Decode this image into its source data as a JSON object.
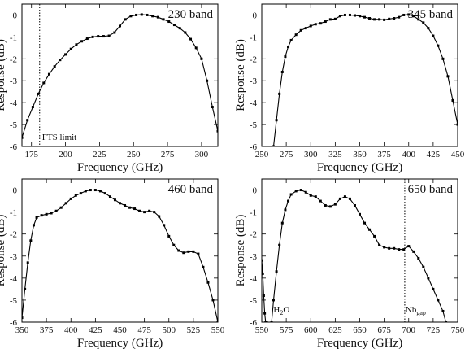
{
  "chart_data": [
    {
      "type": "line",
      "band_label": "230 band",
      "xlabel": "Frequency (GHz)",
      "ylabel": "Response (dB)",
      "xlim": [
        168,
        312
      ],
      "ylim": [
        -6,
        0.5
      ],
      "xticks": [
        175,
        200,
        225,
        250,
        275,
        300
      ],
      "yticks": [
        0,
        -1,
        -2,
        -3,
        -4,
        -5,
        -6
      ],
      "annotations": [
        {
          "text": "FTS limit",
          "x": 181
        }
      ],
      "series": [
        {
          "x": [
            168,
            172,
            176,
            180,
            184,
            188,
            192,
            196,
            200,
            204,
            208,
            212,
            216,
            220,
            224,
            228,
            232,
            236,
            240,
            244,
            248,
            252,
            256,
            260,
            264,
            268,
            272,
            276,
            280,
            284,
            288,
            292,
            296,
            300,
            304,
            308,
            312
          ],
          "y": [
            -5.6,
            -4.8,
            -4.2,
            -3.6,
            -3.1,
            -2.7,
            -2.35,
            -2.05,
            -1.8,
            -1.55,
            -1.35,
            -1.2,
            -1.08,
            -1.0,
            -0.97,
            -0.97,
            -0.95,
            -0.8,
            -0.5,
            -0.2,
            -0.05,
            0.0,
            0.02,
            0.0,
            -0.05,
            -0.1,
            -0.2,
            -0.3,
            -0.45,
            -0.6,
            -0.8,
            -1.1,
            -1.5,
            -2.0,
            -3.0,
            -4.2,
            -5.3
          ]
        }
      ]
    },
    {
      "type": "line",
      "band_label": "345 band",
      "xlabel": "Frequency (GHz)",
      "ylabel": "Response (dB)",
      "xlim": [
        250,
        450
      ],
      "ylim": [
        -6,
        0.5
      ],
      "xticks": [
        250,
        275,
        300,
        325,
        350,
        375,
        400,
        425,
        450
      ],
      "yticks": [
        0,
        -1,
        -2,
        -3,
        -4,
        -5,
        -6
      ],
      "annotations": [],
      "series": [
        {
          "x": [
            262,
            265,
            268,
            271,
            274,
            277,
            280,
            285,
            290,
            295,
            300,
            305,
            310,
            315,
            320,
            325,
            330,
            335,
            340,
            345,
            350,
            355,
            360,
            365,
            370,
            375,
            380,
            385,
            390,
            395,
            400,
            405,
            410,
            415,
            420,
            425,
            430,
            435,
            440,
            445,
            450
          ],
          "y": [
            -6.0,
            -4.8,
            -3.6,
            -2.6,
            -1.9,
            -1.45,
            -1.15,
            -0.9,
            -0.7,
            -0.6,
            -0.5,
            -0.42,
            -0.38,
            -0.3,
            -0.2,
            -0.18,
            -0.05,
            0.0,
            0.0,
            -0.02,
            -0.05,
            -0.1,
            -0.15,
            -0.2,
            -0.2,
            -0.22,
            -0.18,
            -0.15,
            -0.1,
            0.0,
            0.02,
            -0.05,
            -0.2,
            -0.35,
            -0.6,
            -0.95,
            -1.4,
            -2.0,
            -2.8,
            -3.9,
            -5.0
          ]
        }
      ]
    },
    {
      "type": "line",
      "band_label": "460 band",
      "xlabel": "Frequency (GHz)",
      "ylabel": "Response (dB)",
      "xlim": [
        350,
        550
      ],
      "ylim": [
        -6,
        0.5
      ],
      "xticks": [
        350,
        375,
        400,
        425,
        450,
        475,
        500,
        525,
        550
      ],
      "yticks": [
        0,
        -1,
        -2,
        -3,
        -4,
        -5,
        -6
      ],
      "annotations": [],
      "series": [
        {
          "x": [
            350,
            353,
            356,
            359,
            362,
            365,
            370,
            375,
            380,
            385,
            390,
            395,
            400,
            405,
            410,
            415,
            420,
            425,
            430,
            435,
            440,
            445,
            450,
            455,
            460,
            465,
            470,
            475,
            480,
            485,
            490,
            495,
            500,
            505,
            510,
            515,
            520,
            525,
            530,
            535,
            540,
            545,
            550
          ],
          "y": [
            -5.8,
            -4.5,
            -3.3,
            -2.3,
            -1.6,
            -1.25,
            -1.15,
            -1.1,
            -1.05,
            -0.95,
            -0.8,
            -0.6,
            -0.4,
            -0.25,
            -0.15,
            -0.05,
            0.0,
            0.0,
            -0.05,
            -0.15,
            -0.3,
            -0.45,
            -0.6,
            -0.7,
            -0.8,
            -0.85,
            -0.95,
            -1.0,
            -0.95,
            -1.0,
            -1.2,
            -1.6,
            -2.1,
            -2.5,
            -2.75,
            -2.85,
            -2.8,
            -2.8,
            -2.9,
            -3.5,
            -4.2,
            -5.0,
            -6.0
          ]
        }
      ]
    },
    {
      "type": "line",
      "band_label": "650 band",
      "xlabel": "Frequency (GHz)",
      "ylabel": "Response (dB)",
      "xlim": [
        550,
        750
      ],
      "ylim": [
        -6,
        0.5
      ],
      "xticks": [
        550,
        575,
        600,
        625,
        650,
        675,
        700,
        725,
        750
      ],
      "yticks": [
        0,
        -1,
        -2,
        -3,
        -4,
        -5,
        -6
      ],
      "annotations": [
        {
          "text": "H₂O",
          "x": 557
        },
        {
          "text": "Nbgap",
          "x": 696
        }
      ],
      "series": [
        {
          "x": [
            550,
            551,
            552,
            553,
            554,
            555
          ],
          "y": [
            -3.2,
            -3.8,
            -4.8,
            -5.6,
            -6.0,
            -6.0
          ]
        },
        {
          "x": [
            560,
            562,
            565,
            568,
            571,
            574,
            577,
            580,
            585,
            590,
            595,
            600,
            605,
            610,
            615,
            620,
            625,
            630,
            635,
            640,
            645,
            650,
            655,
            660,
            665,
            670,
            675,
            680,
            685,
            690,
            695,
            700,
            705,
            710,
            715,
            720,
            725,
            730,
            735,
            738
          ],
          "y": [
            -6.0,
            -5.0,
            -3.7,
            -2.5,
            -1.5,
            -0.9,
            -0.5,
            -0.2,
            -0.05,
            0.0,
            -0.1,
            -0.25,
            -0.3,
            -0.5,
            -0.7,
            -0.75,
            -0.65,
            -0.4,
            -0.3,
            -0.4,
            -0.7,
            -1.1,
            -1.5,
            -1.8,
            -2.1,
            -2.5,
            -2.6,
            -2.65,
            -2.65,
            -2.7,
            -2.7,
            -2.55,
            -2.8,
            -3.1,
            -3.5,
            -4.0,
            -4.5,
            -5.0,
            -5.5,
            -6.0
          ]
        }
      ]
    }
  ]
}
